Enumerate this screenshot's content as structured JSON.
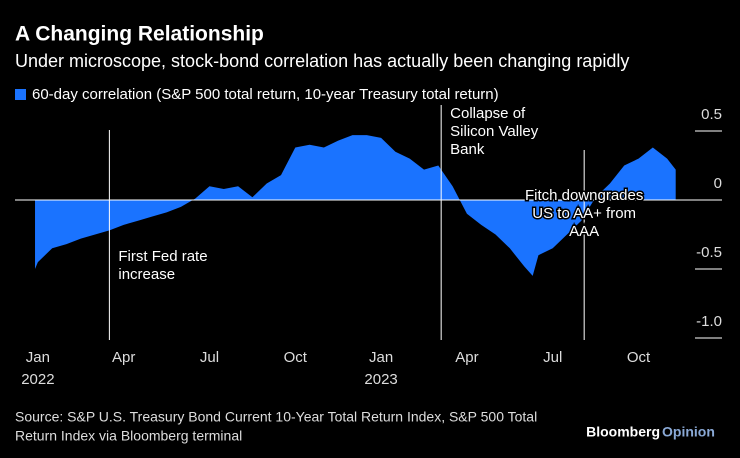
{
  "chart_data": {
    "type": "area",
    "title": "A Changing Relationship",
    "subtitle": "Under microscope, stock-bond correlation has actually been changing rapidly",
    "x": [
      -0.1,
      0,
      0.5,
      1,
      1.5,
      2,
      2.5,
      3,
      3.5,
      4,
      4.5,
      5,
      5.5,
      6,
      6.5,
      7,
      7.5,
      8,
      8.5,
      9,
      9.5,
      10,
      10.5,
      11,
      11.5,
      12,
      12.5,
      13,
      13.5,
      14,
      14.5,
      15,
      15.5,
      16,
      16.5,
      17,
      17.3,
      17.5,
      18,
      18.5,
      19,
      19.5,
      20,
      20.5,
      21,
      21.5,
      22,
      22.3
    ],
    "series": [
      {
        "name": "60-day correlation (S&P 500 total return, 10-year Treasury total return)",
        "color": "#1a73ff",
        "values": [
          -0.5,
          -0.45,
          -0.35,
          -0.32,
          -0.28,
          -0.25,
          -0.22,
          -0.18,
          -0.15,
          -0.12,
          -0.09,
          -0.05,
          0.01,
          0.1,
          0.08,
          0.1,
          0.02,
          0.12,
          0.18,
          0.38,
          0.4,
          0.38,
          0.43,
          0.47,
          0.47,
          0.45,
          0.35,
          0.3,
          0.22,
          0.25,
          0.1,
          -0.1,
          -0.18,
          -0.25,
          -0.35,
          -0.48,
          -0.55,
          -0.4,
          -0.35,
          -0.25,
          -0.15,
          0.02,
          0.12,
          0.25,
          0.3,
          0.38,
          0.3,
          0.22
        ]
      }
    ],
    "xlim": [
      -0.8,
      22.8
    ],
    "xticks": [
      {
        "value": 0,
        "label": "Jan"
      },
      {
        "value": 3,
        "label": "Apr"
      },
      {
        "value": 6,
        "label": "Jul"
      },
      {
        "value": 9,
        "label": "Oct"
      },
      {
        "value": 12,
        "label": "Jan"
      },
      {
        "value": 15,
        "label": "Apr"
      },
      {
        "value": 18,
        "label": "Jul"
      },
      {
        "value": 21,
        "label": "Oct"
      }
    ],
    "year_labels": [
      {
        "value": 0,
        "label": "2022"
      },
      {
        "value": 12,
        "label": "2023"
      }
    ],
    "ylim": [
      -1.0,
      0.5
    ],
    "yticks": [
      {
        "value": 0.5,
        "label": "0.5"
      },
      {
        "value": 0,
        "label": "0"
      },
      {
        "value": -0.5,
        "label": "-0.5"
      },
      {
        "value": -1.0,
        "label": "-1.0"
      }
    ],
    "annotations": [
      {
        "x": 2.5,
        "lines": [
          "First Fed rate",
          "increase"
        ],
        "align": "left"
      },
      {
        "x": 14.1,
        "lines": [
          "Collapse of",
          "Silicon Valley",
          "Bank"
        ],
        "align": "left"
      },
      {
        "x": 19.1,
        "lines": [
          "Fitch downgrades",
          "US to AA+ from",
          "AAA"
        ],
        "align": "center"
      }
    ],
    "source": [
      "Source: S&P U.S. Treasury Bond Current 10-Year Total Return Index, S&P 500 Total",
      "Return Index via Bloomberg terminal"
    ],
    "brand": [
      "Bloomberg",
      "Opinion"
    ]
  }
}
